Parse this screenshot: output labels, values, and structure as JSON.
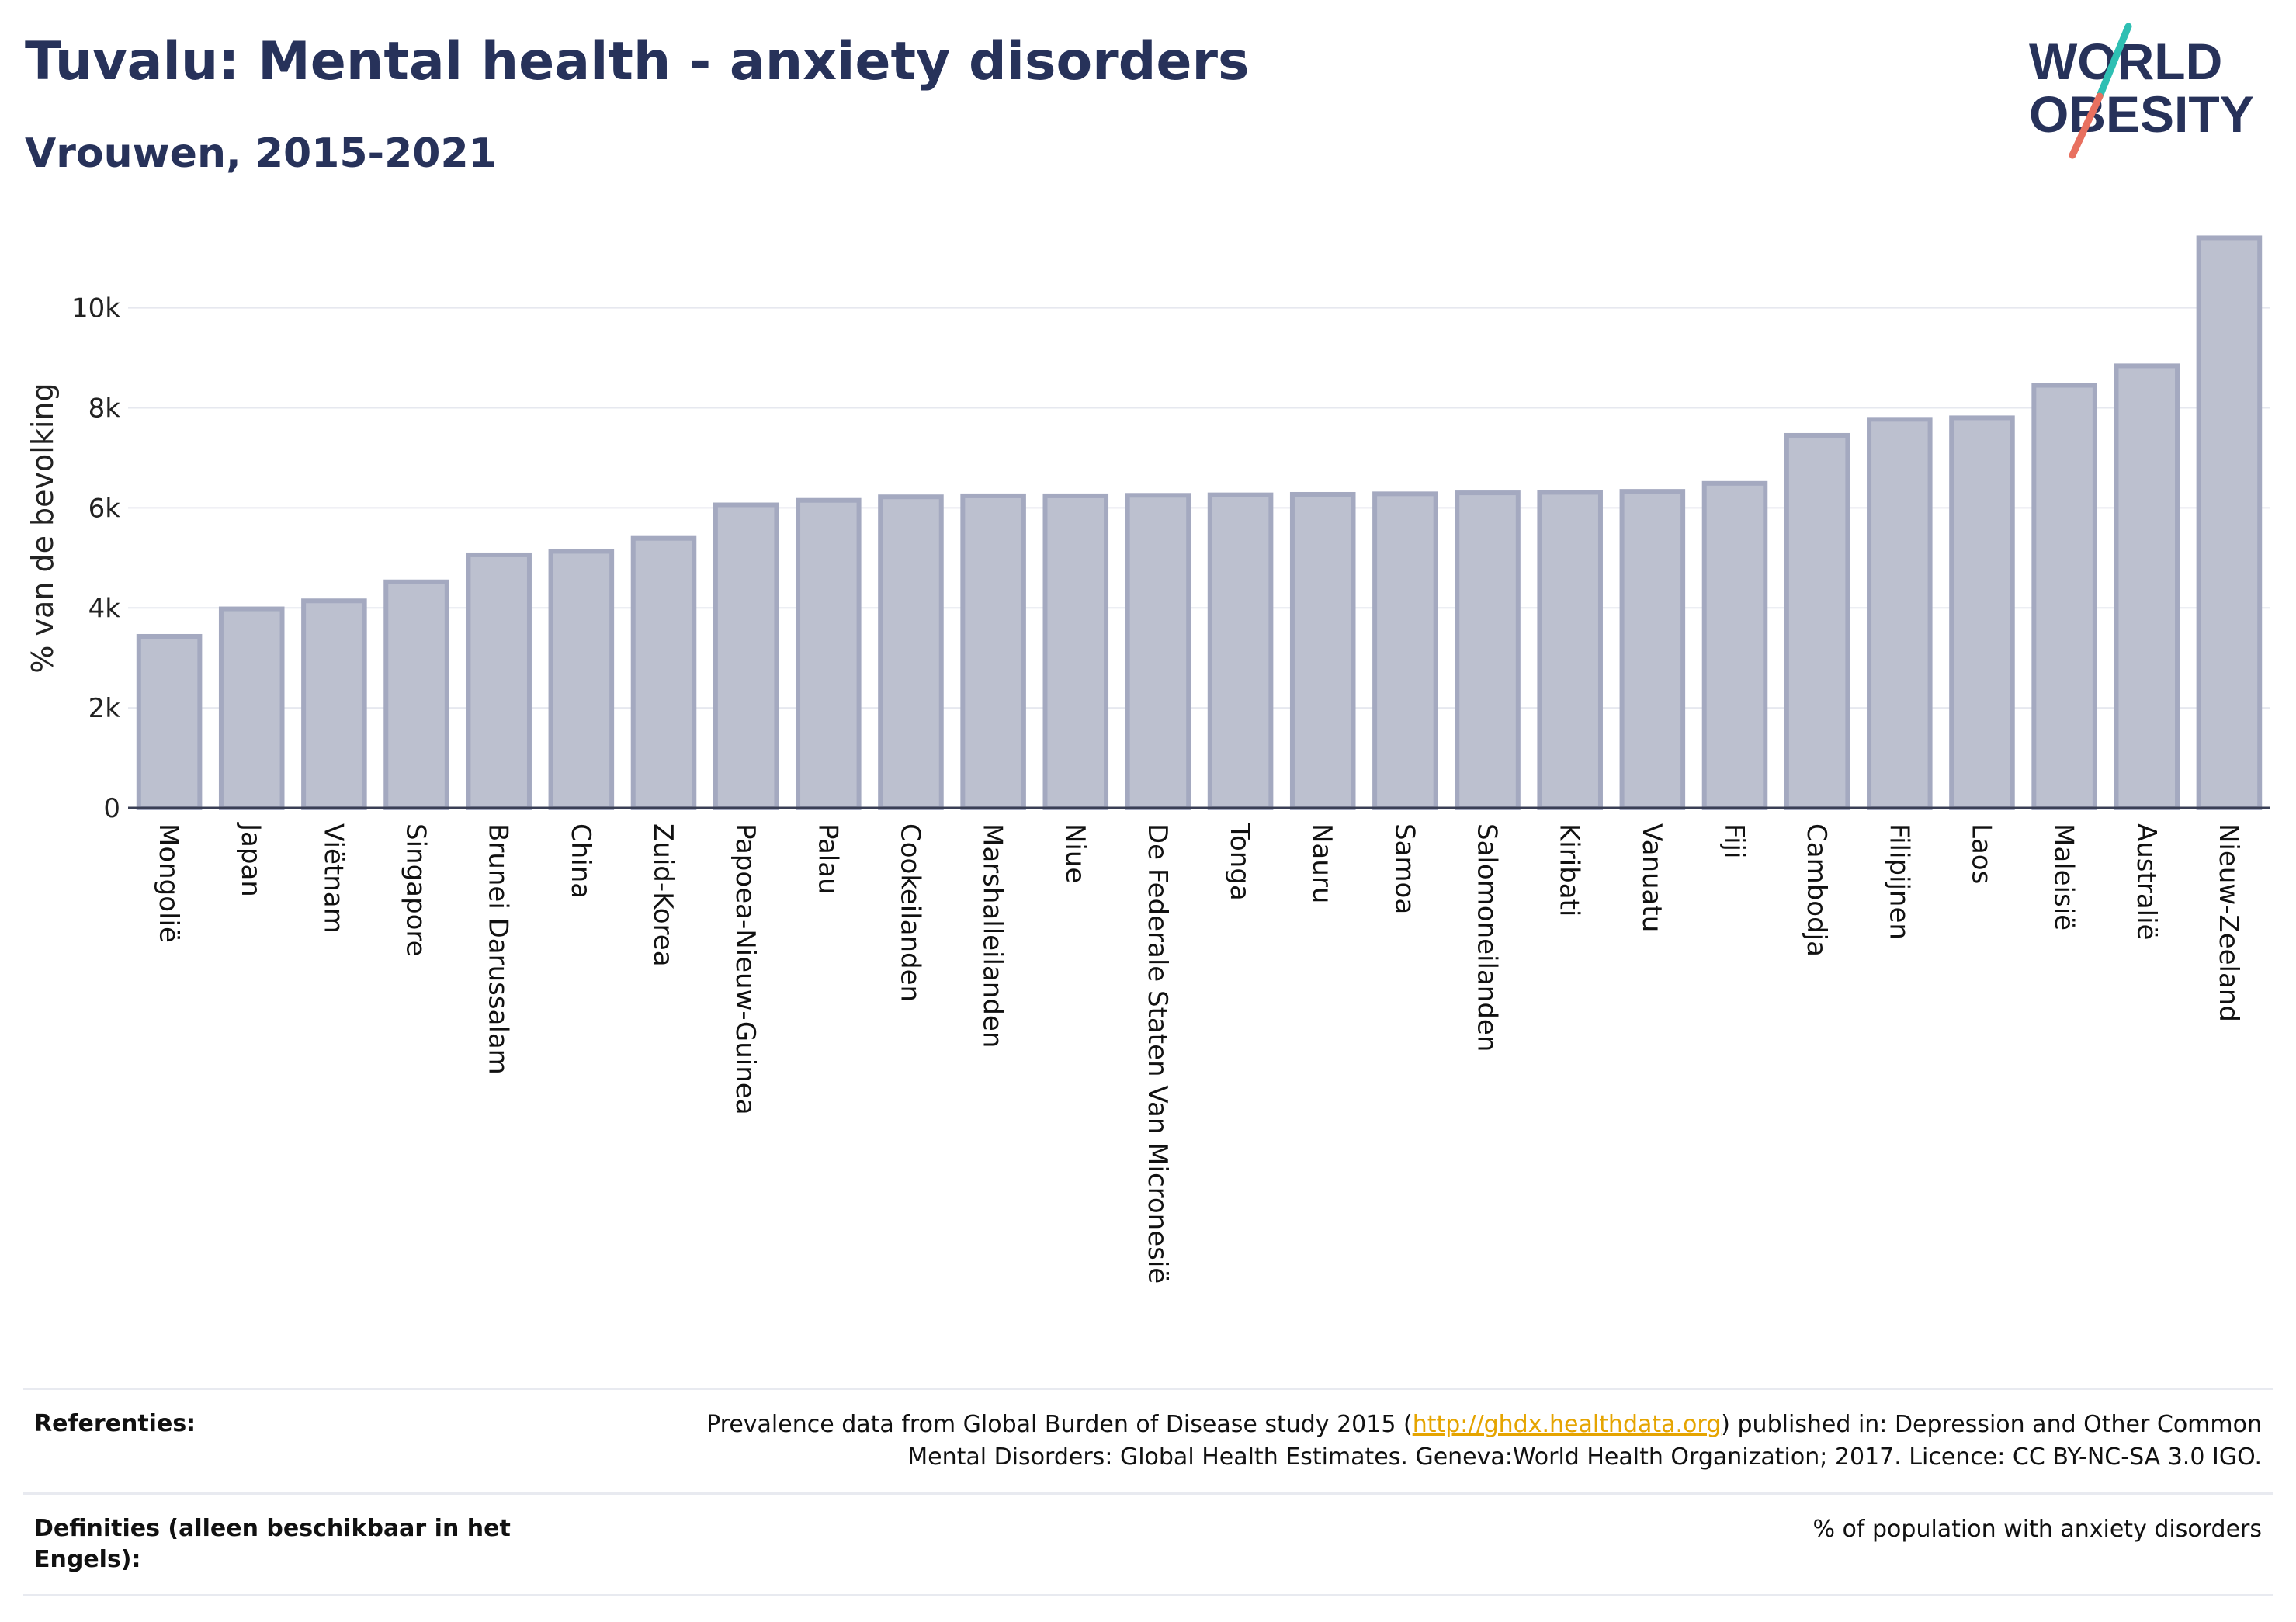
{
  "title": "Tuvalu: Mental health - anxiety disorders",
  "subtitle": "Vrouwen, 2015-2021",
  "logo": {
    "line1": "WORLD",
    "line2": "OBESITY",
    "accent_colors": [
      "#2ebfb3",
      "#e8705f"
    ]
  },
  "chart_data": {
    "type": "bar",
    "ylabel": "% van de bevolking",
    "ylim": [
      0,
      11500
    ],
    "yticks": [
      0,
      2000,
      4000,
      6000,
      8000,
      10000
    ],
    "ytick_labels": [
      "0",
      "2k",
      "4k",
      "6k",
      "8k",
      "10k"
    ],
    "grid": true,
    "bar_color": "#bcc0cf",
    "bar_edge_color": "#a4a9c0",
    "categories": [
      "Mongolië",
      "Japan",
      "Viëtnam",
      "Singapore",
      "Brunei Darussalam",
      "China",
      "Zuid-Korea",
      "Papoea-Nieuw-Guinea",
      "Palau",
      "Cookeilanden",
      "Marshalleilanden",
      "Niue",
      "De Federale Staten Van Micronesië",
      "Tonga",
      "Nauru",
      "Samoa",
      "Salomoneilanden",
      "Kiribati",
      "Vanuatu",
      "Fiji",
      "Cambodja",
      "Filipijnen",
      "Laos",
      "Maleisië",
      "Australië",
      "Nieuw-Zeeland"
    ],
    "values": [
      3430,
      3980,
      4140,
      4520,
      5060,
      5130,
      5390,
      6060,
      6150,
      6220,
      6240,
      6240,
      6250,
      6260,
      6270,
      6280,
      6300,
      6310,
      6330,
      6490,
      7450,
      7770,
      7800,
      8450,
      8840,
      11400
    ]
  },
  "references": {
    "label": "Referenties:",
    "text_before": "Prevalence data from Global Burden of Disease study 2015 (",
    "link": "http://ghdx.healthdata.org",
    "text_after_line1": ") published in: Depression and Other Common",
    "text_line2": "Mental Disorders: Global Health Estimates. Geneva:World Health Organization; 2017. Licence: CC BY-NC-SA 3.0 IGO."
  },
  "definitions": {
    "label": "Definities (alleen beschikbaar in het Engels):",
    "text": "% of population with anxiety disorders"
  }
}
